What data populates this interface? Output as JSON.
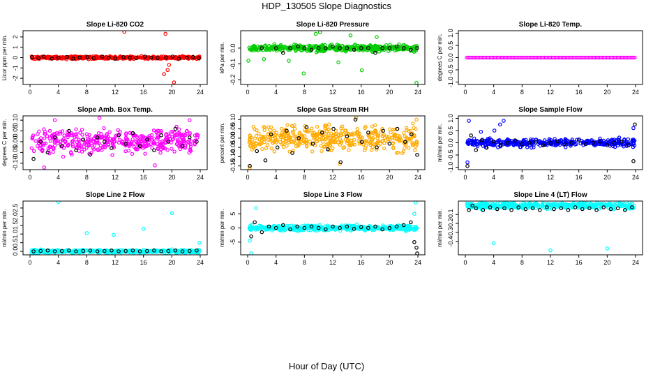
{
  "figure": {
    "title": "HDP_130505  Slope Diagnostics",
    "xlabel": "Hour of Day (UTC)"
  },
  "chart_data": [
    {
      "type": "scatter",
      "title": "Slope Li-820 CO2",
      "ylabel": "Licor ppm per min.",
      "xlim": [
        0,
        24
      ],
      "xticks": [
        "0",
        "4",
        "8",
        "12",
        "16",
        "20",
        "24"
      ],
      "ylim": [
        -2.6,
        2.6
      ],
      "yticks": [
        "-2",
        "-1",
        "0",
        "1",
        "2"
      ],
      "color": "#ff0000",
      "band": 0.18,
      "outliers": [
        [
          13.3,
          2.5
        ],
        [
          19.1,
          2.3
        ],
        [
          19.4,
          -1.2
        ],
        [
          18.9,
          -1.6
        ],
        [
          20.3,
          -2.4
        ],
        [
          19.6,
          -0.7
        ]
      ],
      "black": [
        [
          0.3,
          0.05
        ],
        [
          1.2,
          -0.05
        ],
        [
          2.0,
          0.1
        ],
        [
          3.1,
          -0.1
        ],
        [
          4.0,
          0.0
        ],
        [
          5.2,
          0.05
        ],
        [
          6.1,
          -0.1
        ],
        [
          7.0,
          0.0
        ],
        [
          8.1,
          0.05
        ],
        [
          9.0,
          -0.05
        ],
        [
          10.2,
          0.1
        ],
        [
          11.1,
          0.0
        ],
        [
          12.0,
          -0.1
        ],
        [
          13.2,
          0.05
        ],
        [
          14.1,
          0.0
        ],
        [
          15.0,
          -0.05
        ],
        [
          16.2,
          0.1
        ],
        [
          17.1,
          0.0
        ],
        [
          18.0,
          -0.05
        ],
        [
          19.2,
          0.0
        ],
        [
          20.1,
          0.1
        ],
        [
          21.0,
          -0.1
        ],
        [
          22.1,
          0.0
        ],
        [
          23.0,
          0.05
        ],
        [
          23.8,
          -0.05
        ]
      ]
    },
    {
      "type": "scatter",
      "title": "Slope Li-820 Pressure",
      "ylabel": "kPa per min.",
      "xlim": [
        0,
        24
      ],
      "xticks": [
        "0",
        "4",
        "8",
        "12",
        "16",
        "20",
        "24"
      ],
      "ylim": [
        -0.23,
        0.11
      ],
      "yticks": [
        "-0.2",
        "-0.1",
        "0.0"
      ],
      "color": "#00cc00",
      "band": 0.025,
      "outliers": [
        [
          0.1,
          -0.08
        ],
        [
          2.3,
          -0.07
        ],
        [
          7.9,
          -0.16
        ],
        [
          9.6,
          0.09
        ],
        [
          10.2,
          0.1
        ],
        [
          14.5,
          0.08
        ],
        [
          16.1,
          -0.14
        ],
        [
          23.8,
          -0.22
        ],
        [
          12.8,
          -0.09
        ],
        [
          5.8,
          -0.08
        ],
        [
          18.2,
          0.07
        ]
      ],
      "black": [
        [
          2.0,
          0.0
        ],
        [
          4.0,
          0.0
        ],
        [
          5.0,
          -0.03
        ],
        [
          6.0,
          0.0
        ],
        [
          7.1,
          0.01
        ],
        [
          8.0,
          0.0
        ],
        [
          9.0,
          -0.01
        ],
        [
          10.0,
          0.0
        ],
        [
          11.0,
          0.0
        ],
        [
          12.0,
          0.01
        ],
        [
          13.0,
          0.0
        ],
        [
          14.0,
          0.0
        ],
        [
          15.0,
          -0.01
        ],
        [
          16.0,
          0.0
        ],
        [
          17.0,
          0.0
        ],
        [
          18.0,
          -0.03
        ],
        [
          19.0,
          0.0
        ],
        [
          20.0,
          0.0
        ],
        [
          21.0,
          0.01
        ],
        [
          22.0,
          0.0
        ],
        [
          23.0,
          -0.01
        ],
        [
          23.9,
          0.0
        ]
      ]
    },
    {
      "type": "scatter",
      "title": "Slope Li-820 Temp.",
      "ylabel": "degrees C per min.",
      "xlim": [
        0,
        24
      ],
      "xticks": [
        "0",
        "4",
        "8",
        "12",
        "16",
        "20",
        "24"
      ],
      "ylim": [
        -1.1,
        1.1
      ],
      "yticks": [
        "-1.0",
        "-0.5",
        "0.0",
        "0.5",
        "1.0"
      ],
      "color": "#ff00ff",
      "band": 0.0,
      "outliers": [],
      "black": []
    },
    {
      "type": "scatter",
      "title": "Slope Amb. Box Temp.",
      "ylabel": "degrees C per min.",
      "xlim": [
        0,
        24
      ],
      "xticks": [
        "0",
        "4",
        "8",
        "12",
        "16",
        "20",
        "24"
      ],
      "ylim": [
        -0.13,
        0.12
      ],
      "yticks": [
        "-0.10",
        "-0.05",
        "0.00",
        "0.05",
        "0.10"
      ],
      "color": "#ff00ff",
      "band": 0.07,
      "outliers": [
        [
          2.0,
          -0.12
        ],
        [
          3.5,
          0.1
        ],
        [
          9.8,
          0.11
        ],
        [
          17.6,
          -0.11
        ],
        [
          22.5,
          0.1
        ]
      ],
      "black": [
        [
          0.5,
          -0.08
        ],
        [
          1.5,
          0.0
        ],
        [
          2.5,
          -0.05
        ],
        [
          3.5,
          0.02
        ],
        [
          4.5,
          -0.02
        ],
        [
          5.5,
          0.05
        ],
        [
          6.5,
          -0.04
        ],
        [
          7.5,
          0.01
        ],
        [
          8.5,
          -0.06
        ],
        [
          9.5,
          0.02
        ],
        [
          10.5,
          0.0
        ],
        [
          11.5,
          -0.03
        ],
        [
          12.5,
          0.03
        ],
        [
          13.5,
          -0.01
        ],
        [
          14.5,
          0.04
        ],
        [
          15.5,
          -0.02
        ],
        [
          16.5,
          0.01
        ],
        [
          17.5,
          -0.04
        ],
        [
          18.5,
          0.03
        ],
        [
          19.5,
          0.0
        ],
        [
          20.5,
          0.06
        ],
        [
          21.5,
          -0.02
        ],
        [
          22.5,
          0.02
        ],
        [
          23.5,
          0.0
        ]
      ]
    },
    {
      "type": "scatter",
      "title": "Slope Gas Stream RH",
      "ylabel": "percent per min.",
      "xlim": [
        0,
        24
      ],
      "xticks": [
        "0",
        "4",
        "8",
        "12",
        "16",
        "20",
        "24"
      ],
      "ylim": [
        -0.17,
        0.12
      ],
      "yticks": [
        "-0.15",
        "-0.10",
        "-0.05",
        "0.00",
        "0.05",
        "0.10"
      ],
      "color": "#ffaa00",
      "band": 0.09,
      "outliers": [
        [
          0.3,
          -0.16
        ],
        [
          13.0,
          -0.14
        ],
        [
          15.3,
          0.11
        ],
        [
          23.8,
          0.1
        ]
      ],
      "black": [
        [
          0.3,
          -0.15
        ],
        [
          1.3,
          -0.07
        ],
        [
          2.5,
          -0.12
        ],
        [
          3.3,
          0.02
        ],
        [
          4.2,
          -0.05
        ],
        [
          5.5,
          0.04
        ],
        [
          6.3,
          -0.08
        ],
        [
          7.2,
          0.0
        ],
        [
          8.3,
          0.06
        ],
        [
          9.2,
          -0.03
        ],
        [
          10.5,
          0.03
        ],
        [
          11.3,
          -0.06
        ],
        [
          12.1,
          0.05
        ],
        [
          13.1,
          -0.13
        ],
        [
          14.0,
          0.01
        ],
        [
          15.2,
          0.1
        ],
        [
          16.1,
          -0.02
        ],
        [
          17.0,
          0.03
        ],
        [
          18.2,
          -0.05
        ],
        [
          19.1,
          0.04
        ],
        [
          20.0,
          -0.03
        ],
        [
          21.1,
          0.05
        ],
        [
          22.2,
          -0.02
        ],
        [
          23.1,
          0.02
        ],
        [
          23.9,
          -0.09
        ]
      ]
    },
    {
      "type": "scatter",
      "title": "Slope Sample Flow",
      "ylabel": "ml/min per min.",
      "xlim": [
        0,
        24
      ],
      "xticks": [
        "0",
        "4",
        "8",
        "12",
        "16",
        "20",
        "24"
      ],
      "ylim": [
        -1.1,
        1.1
      ],
      "yticks": [
        "-1.0",
        "-0.5",
        "0.0",
        "0.5",
        "1.0"
      ],
      "color": "#0000ff",
      "band": 0.22,
      "outliers": [
        [
          0.5,
          0.9
        ],
        [
          4.1,
          0.5
        ],
        [
          5.4,
          0.9
        ],
        [
          4.9,
          0.75
        ],
        [
          0.3,
          -0.8
        ],
        [
          23.7,
          0.6
        ],
        [
          2.2,
          0.45
        ]
      ],
      "black": [
        [
          0.3,
          -0.95
        ],
        [
          0.8,
          0.3
        ],
        [
          1.5,
          -0.3
        ],
        [
          2.3,
          0.1
        ],
        [
          3.0,
          -0.2
        ],
        [
          4.0,
          0.05
        ],
        [
          5.0,
          -0.1
        ],
        [
          6.0,
          0.0
        ],
        [
          7.0,
          0.1
        ],
        [
          8.0,
          -0.05
        ],
        [
          9.0,
          0.0
        ],
        [
          10.0,
          0.05
        ],
        [
          11.0,
          -0.1
        ],
        [
          12.0,
          0.0
        ],
        [
          13.0,
          0.05
        ],
        [
          14.0,
          -0.05
        ],
        [
          15.0,
          0.0
        ],
        [
          16.0,
          0.1
        ],
        [
          17.0,
          -0.05
        ],
        [
          18.0,
          0.0
        ],
        [
          19.0,
          0.05
        ],
        [
          20.0,
          -0.1
        ],
        [
          21.0,
          0.0
        ],
        [
          22.0,
          0.05
        ],
        [
          23.0,
          -0.1
        ],
        [
          23.7,
          -0.75
        ],
        [
          23.9,
          0.75
        ]
      ]
    },
    {
      "type": "scatter",
      "title": "Slope Line 2 Flow",
      "ylabel": "ml/min per min.",
      "xlim": [
        0,
        24
      ],
      "xticks": [
        "0",
        "4",
        "8",
        "12",
        "16",
        "20",
        "24"
      ],
      "ylim": [
        -0.2,
        2.9
      ],
      "yticks": [
        "0.0",
        "0.5",
        "1.0",
        "1.5",
        "2.0",
        "2.5"
      ],
      "color": "#00ffff",
      "band": 0.12,
      "outliers": [
        [
          4.0,
          2.85
        ],
        [
          20.0,
          2.2
        ],
        [
          8.0,
          1.05
        ],
        [
          11.8,
          0.95
        ],
        [
          16.0,
          1.3
        ],
        [
          0.2,
          -0.1
        ],
        [
          23.9,
          0.5
        ]
      ],
      "black": [
        [
          0.5,
          0.0
        ],
        [
          1.5,
          0.02
        ],
        [
          2.5,
          0.05
        ],
        [
          3.5,
          0.0
        ],
        [
          4.5,
          0.02
        ],
        [
          5.5,
          0.05
        ],
        [
          6.5,
          0.0
        ],
        [
          7.5,
          0.02
        ],
        [
          8.5,
          0.05
        ],
        [
          9.5,
          0.0
        ],
        [
          10.5,
          0.02
        ],
        [
          11.5,
          0.05
        ],
        [
          12.5,
          0.0
        ],
        [
          13.5,
          0.02
        ],
        [
          14.5,
          0.05
        ],
        [
          15.5,
          0.0
        ],
        [
          16.5,
          0.02
        ],
        [
          17.5,
          0.05
        ],
        [
          18.5,
          0.0
        ],
        [
          19.5,
          0.02
        ],
        [
          20.5,
          0.05
        ],
        [
          21.5,
          0.0
        ],
        [
          22.5,
          0.02
        ],
        [
          23.5,
          0.05
        ]
      ]
    },
    {
      "type": "scatter",
      "title": "Slope Line 3 Flow",
      "ylabel": "ml/min per min.",
      "xlim": [
        0,
        24
      ],
      "xticks": [
        "0",
        "4",
        "8",
        "12",
        "16",
        "20",
        "24"
      ],
      "ylim": [
        -9.5,
        9.5
      ],
      "yticks": [
        "-5",
        "0",
        "5"
      ],
      "color": "#00ffff",
      "band": 1.3,
      "outliers": [
        [
          0.5,
          -9.0
        ],
        [
          0.3,
          -4.5
        ],
        [
          1.2,
          7.0
        ],
        [
          23.5,
          5.0
        ],
        [
          23.7,
          9.0
        ]
      ],
      "black": [
        [
          0.5,
          -3.0
        ],
        [
          1.0,
          2.0
        ],
        [
          2.0,
          -1.5
        ],
        [
          3.0,
          0.5
        ],
        [
          4.0,
          0.0
        ],
        [
          5.0,
          1.0
        ],
        [
          6.0,
          -0.5
        ],
        [
          7.0,
          0.5
        ],
        [
          8.0,
          0.0
        ],
        [
          9.0,
          0.5
        ],
        [
          10.0,
          0.0
        ],
        [
          11.0,
          -0.5
        ],
        [
          12.0,
          0.5
        ],
        [
          13.0,
          0.0
        ],
        [
          14.0,
          0.5
        ],
        [
          15.0,
          -0.3
        ],
        [
          16.0,
          0.3
        ],
        [
          17.0,
          0.0
        ],
        [
          18.0,
          0.5
        ],
        [
          19.0,
          -0.5
        ],
        [
          20.0,
          0.0
        ],
        [
          21.0,
          0.5
        ],
        [
          22.0,
          1.0
        ],
        [
          23.0,
          2.0
        ],
        [
          23.8,
          -7.0
        ],
        [
          23.9,
          -9.0
        ],
        [
          23.5,
          -5.0
        ]
      ]
    },
    {
      "type": "scatter",
      "title": "Slope Line 4 (LT) Flow",
      "ylabel": "ml/min per min.",
      "xlim": [
        0,
        24
      ],
      "xticks": [
        "0",
        "4",
        "8",
        "12",
        "16",
        "20",
        "24"
      ],
      "ylim": [
        -0.55,
        0.05
      ],
      "yticks": [
        "-0.4",
        "-0.3",
        "-0.2",
        "-0.1"
      ],
      "color": "#00ffff",
      "band": 0.045,
      "outliers": [
        [
          4.0,
          -0.42
        ],
        [
          12.0,
          -0.5
        ],
        [
          20.0,
          -0.48
        ]
      ],
      "black": [
        [
          0.5,
          -0.05
        ],
        [
          1.0,
          0.0
        ],
        [
          1.5,
          -0.03
        ],
        [
          2.5,
          -0.05
        ],
        [
          3.5,
          -0.02
        ],
        [
          4.5,
          -0.04
        ],
        [
          5.5,
          -0.03
        ],
        [
          6.5,
          -0.05
        ],
        [
          7.5,
          -0.02
        ],
        [
          8.5,
          -0.04
        ],
        [
          9.5,
          -0.03
        ],
        [
          10.5,
          -0.05
        ],
        [
          11.5,
          -0.02
        ],
        [
          12.5,
          -0.04
        ],
        [
          13.5,
          -0.03
        ],
        [
          14.5,
          -0.05
        ],
        [
          15.5,
          -0.02
        ],
        [
          16.5,
          -0.04
        ],
        [
          17.5,
          -0.03
        ],
        [
          18.5,
          -0.05
        ],
        [
          19.5,
          -0.02
        ],
        [
          20.5,
          -0.04
        ],
        [
          21.5,
          -0.03
        ],
        [
          22.5,
          -0.05
        ],
        [
          23.5,
          -0.02
        ]
      ]
    }
  ]
}
